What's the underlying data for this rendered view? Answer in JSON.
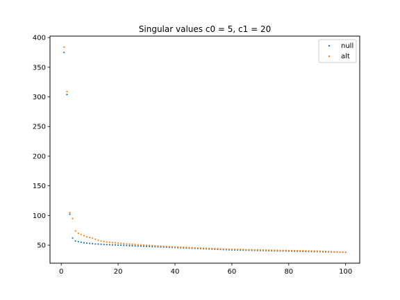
{
  "chart_data": {
    "type": "scatter",
    "title": "Singular values c0 = 5, c1 = 20",
    "xlabel": "",
    "ylabel": "",
    "xlim": [
      -3.95,
      104.95
    ],
    "ylim": [
      19.6,
      402.5
    ],
    "xticks": [
      0,
      20,
      40,
      60,
      80,
      100
    ],
    "yticks": [
      50,
      100,
      150,
      200,
      250,
      300,
      350,
      400
    ],
    "grid": false,
    "legend_position": "top-right",
    "series": [
      {
        "name": "null",
        "color": "#1f77b4",
        "x": [
          1,
          2,
          3,
          4,
          5,
          6,
          7,
          8,
          9,
          10,
          11,
          12,
          13,
          14,
          15,
          16,
          17,
          18,
          19,
          20,
          21,
          22,
          23,
          24,
          25,
          26,
          27,
          28,
          29,
          30,
          31,
          32,
          33,
          34,
          35,
          36,
          37,
          38,
          39,
          40,
          41,
          42,
          43,
          44,
          45,
          46,
          47,
          48,
          49,
          50,
          51,
          52,
          53,
          54,
          55,
          56,
          57,
          58,
          59,
          60,
          61,
          62,
          63,
          64,
          65,
          66,
          67,
          68,
          69,
          70,
          71,
          72,
          73,
          74,
          75,
          76,
          77,
          78,
          79,
          80,
          81,
          82,
          83,
          84,
          85,
          86,
          87,
          88,
          89,
          90,
          91,
          92,
          93,
          94,
          95,
          96,
          97,
          98,
          99,
          100
        ],
        "y": [
          375,
          304,
          102,
          62,
          57,
          56,
          55,
          54,
          53.5,
          53,
          52.5,
          52,
          51.8,
          51.5,
          51.2,
          51,
          50.8,
          50.5,
          50.3,
          50,
          49.8,
          49.6,
          49.4,
          49.2,
          49,
          48.8,
          48.6,
          48.4,
          48.2,
          48,
          47.8,
          47.6,
          47.4,
          47.2,
          47,
          46.8,
          46.6,
          46.4,
          46.2,
          46,
          45.8,
          45.6,
          45.4,
          45.2,
          45,
          44.8,
          44.6,
          44.4,
          44.2,
          44,
          43.8,
          43.6,
          43.4,
          43.2,
          43,
          42.8,
          42.6,
          42.4,
          42.2,
          42,
          41.9,
          41.8,
          41.7,
          41.6,
          41.5,
          41.4,
          41.3,
          41.2,
          41.1,
          41,
          40.9,
          40.8,
          40.7,
          40.6,
          40.5,
          40.4,
          40.3,
          40.2,
          40.1,
          40,
          39.9,
          39.8,
          39.7,
          39.6,
          39.5,
          39.4,
          39.3,
          39.2,
          39.1,
          39,
          38.9,
          38.8,
          38.7,
          38.6,
          38.5,
          38.4,
          38.3,
          38.2,
          38.1,
          38
        ]
      },
      {
        "name": "alt",
        "color": "#ff7f0e",
        "x": [
          1,
          2,
          3,
          4,
          5,
          6,
          7,
          8,
          9,
          10,
          11,
          12,
          13,
          14,
          15,
          16,
          17,
          18,
          19,
          20,
          21,
          22,
          23,
          24,
          25,
          26,
          27,
          28,
          29,
          30,
          31,
          32,
          33,
          34,
          35,
          36,
          37,
          38,
          39,
          40,
          41,
          42,
          43,
          44,
          45,
          46,
          47,
          48,
          49,
          50,
          51,
          52,
          53,
          54,
          55,
          56,
          57,
          58,
          59,
          60,
          61,
          62,
          63,
          64,
          65,
          66,
          67,
          68,
          69,
          70,
          71,
          72,
          73,
          74,
          75,
          76,
          77,
          78,
          79,
          80,
          81,
          82,
          83,
          84,
          85,
          86,
          87,
          88,
          89,
          90,
          91,
          92,
          93,
          94,
          95,
          96,
          97,
          98,
          99,
          100
        ],
        "y": [
          384,
          309,
          105,
          95,
          74,
          70,
          68,
          66,
          64,
          63,
          62,
          60,
          58,
          57,
          56,
          55.5,
          55,
          54.5,
          54,
          53.5,
          53,
          52.5,
          52,
          51.7,
          51.4,
          51.1,
          50.8,
          50.5,
          50.2,
          50,
          49.7,
          49.4,
          49.1,
          48.8,
          48.5,
          48.2,
          47.9,
          47.6,
          47.3,
          47,
          46.8,
          46.6,
          46.4,
          46.2,
          46,
          45.8,
          45.6,
          45.4,
          45.2,
          45,
          44.8,
          44.6,
          44.4,
          44.2,
          44,
          43.8,
          43.6,
          43.4,
          43.2,
          43,
          42.9,
          42.8,
          42.7,
          42.6,
          42.5,
          42.4,
          42.3,
          42.2,
          42.1,
          42,
          41.9,
          41.8,
          41.7,
          41.6,
          41.5,
          41.4,
          41.3,
          41.2,
          41.1,
          41,
          40.9,
          40.8,
          40.7,
          40.6,
          40.5,
          40.4,
          40.3,
          40.2,
          40.1,
          40,
          39.8,
          39.6,
          39.4,
          39.2,
          39,
          38.8,
          38.6,
          38.4,
          38.2,
          38
        ]
      }
    ]
  }
}
